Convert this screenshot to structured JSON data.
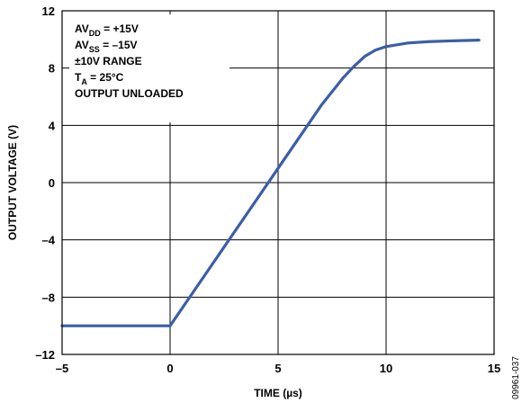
{
  "chart_data": {
    "type": "line",
    "xlabel": "TIME (µs)",
    "ylabel": "OUTPUT VOLTAGE (V)",
    "xlim": [
      -5,
      15
    ],
    "ylim": [
      -12,
      12
    ],
    "x_ticks": [
      -5,
      0,
      5,
      10,
      15
    ],
    "y_ticks": [
      -12,
      -8,
      -4,
      0,
      4,
      8,
      12
    ],
    "x_tick_labels": [
      "–5",
      "0",
      "5",
      "10",
      "15"
    ],
    "y_tick_labels": [
      "–12",
      "–8",
      "–4",
      "0",
      "4",
      "8",
      "12"
    ],
    "grid": true,
    "series": [
      {
        "color": "#3b5ea6",
        "x": [
          -5,
          -1,
          0,
          1,
          2,
          3,
          4,
          5,
          6,
          7,
          8,
          8.5,
          9,
          9.5,
          10,
          11,
          12,
          13,
          14.3
        ],
        "y": [
          -10,
          -10,
          -10,
          -7.8,
          -5.6,
          -3.4,
          -1.2,
          1.0,
          3.2,
          5.4,
          7.3,
          8.1,
          8.8,
          9.25,
          9.5,
          9.75,
          9.85,
          9.9,
          9.95
        ]
      }
    ],
    "annotations": [
      {
        "text": "AV",
        "sub": "DD",
        "rest": " = +15V"
      },
      {
        "text": "AV",
        "sub": "SS",
        "rest": " = –15V"
      },
      {
        "text": "±10V RANGE",
        "sub": "",
        "rest": ""
      },
      {
        "text": "T",
        "sub": "A",
        "rest": " = 25°C"
      },
      {
        "text": "OUTPUT UNLOADED",
        "sub": "",
        "rest": ""
      }
    ]
  },
  "figure_id": "09961-037"
}
